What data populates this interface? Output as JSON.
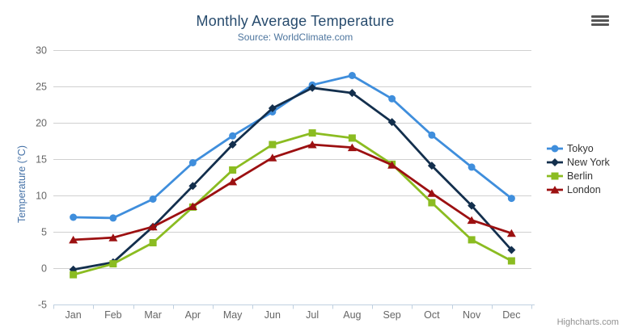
{
  "chart": {
    "credit": "Highcharts.com",
    "menu_icon": "hamburger-icon",
    "background_color": "#ffffff",
    "gridline_color": "#d0d0d0",
    "axis_line_color": "#c0d0e0",
    "tick_label_color": "#666666",
    "title_color": "#274b6d",
    "subtitle_color": "#4d759e",
    "y_axis_title_color": "#4572a7",
    "legend_text_color": "#333333"
  },
  "chart_data": {
    "type": "line",
    "title": "Monthly Average Temperature",
    "subtitle": "Source: WorldClimate.com",
    "xlabel": "",
    "ylabel": "Temperature (°C)",
    "categories": [
      "Jan",
      "Feb",
      "Mar",
      "Apr",
      "May",
      "Jun",
      "Jul",
      "Aug",
      "Sep",
      "Oct",
      "Nov",
      "Dec"
    ],
    "ylim": [
      -5,
      30
    ],
    "y_ticks": [
      -5,
      0,
      5,
      10,
      15,
      20,
      25,
      30
    ],
    "grid": true,
    "legend_position": "right",
    "series": [
      {
        "name": "Tokyo",
        "color": "#3f8edc",
        "marker": "circle",
        "values": [
          7.0,
          6.9,
          9.5,
          14.5,
          18.2,
          21.5,
          25.2,
          26.5,
          23.3,
          18.3,
          13.9,
          9.6
        ]
      },
      {
        "name": "New York",
        "color": "#132f4d",
        "marker": "diamond",
        "values": [
          -0.2,
          0.8,
          5.7,
          11.3,
          17.0,
          22.0,
          24.8,
          24.1,
          20.1,
          14.1,
          8.6,
          2.5
        ]
      },
      {
        "name": "Berlin",
        "color": "#8bbc21",
        "marker": "square",
        "values": [
          -0.9,
          0.6,
          3.5,
          8.4,
          13.5,
          17.0,
          18.6,
          17.9,
          14.3,
          9.0,
          3.9,
          1.0
        ]
      },
      {
        "name": "London",
        "color": "#9c1011",
        "marker": "triangle",
        "values": [
          3.9,
          4.2,
          5.7,
          8.5,
          11.9,
          15.2,
          17.0,
          16.6,
          14.2,
          10.3,
          6.6,
          4.8
        ]
      }
    ]
  }
}
